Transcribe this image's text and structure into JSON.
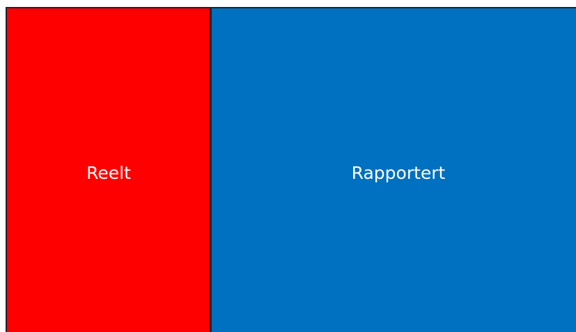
{
  "blocks": [
    {
      "label": "Reelt"
    },
    {
      "label": "Rapportert"
    }
  ]
}
